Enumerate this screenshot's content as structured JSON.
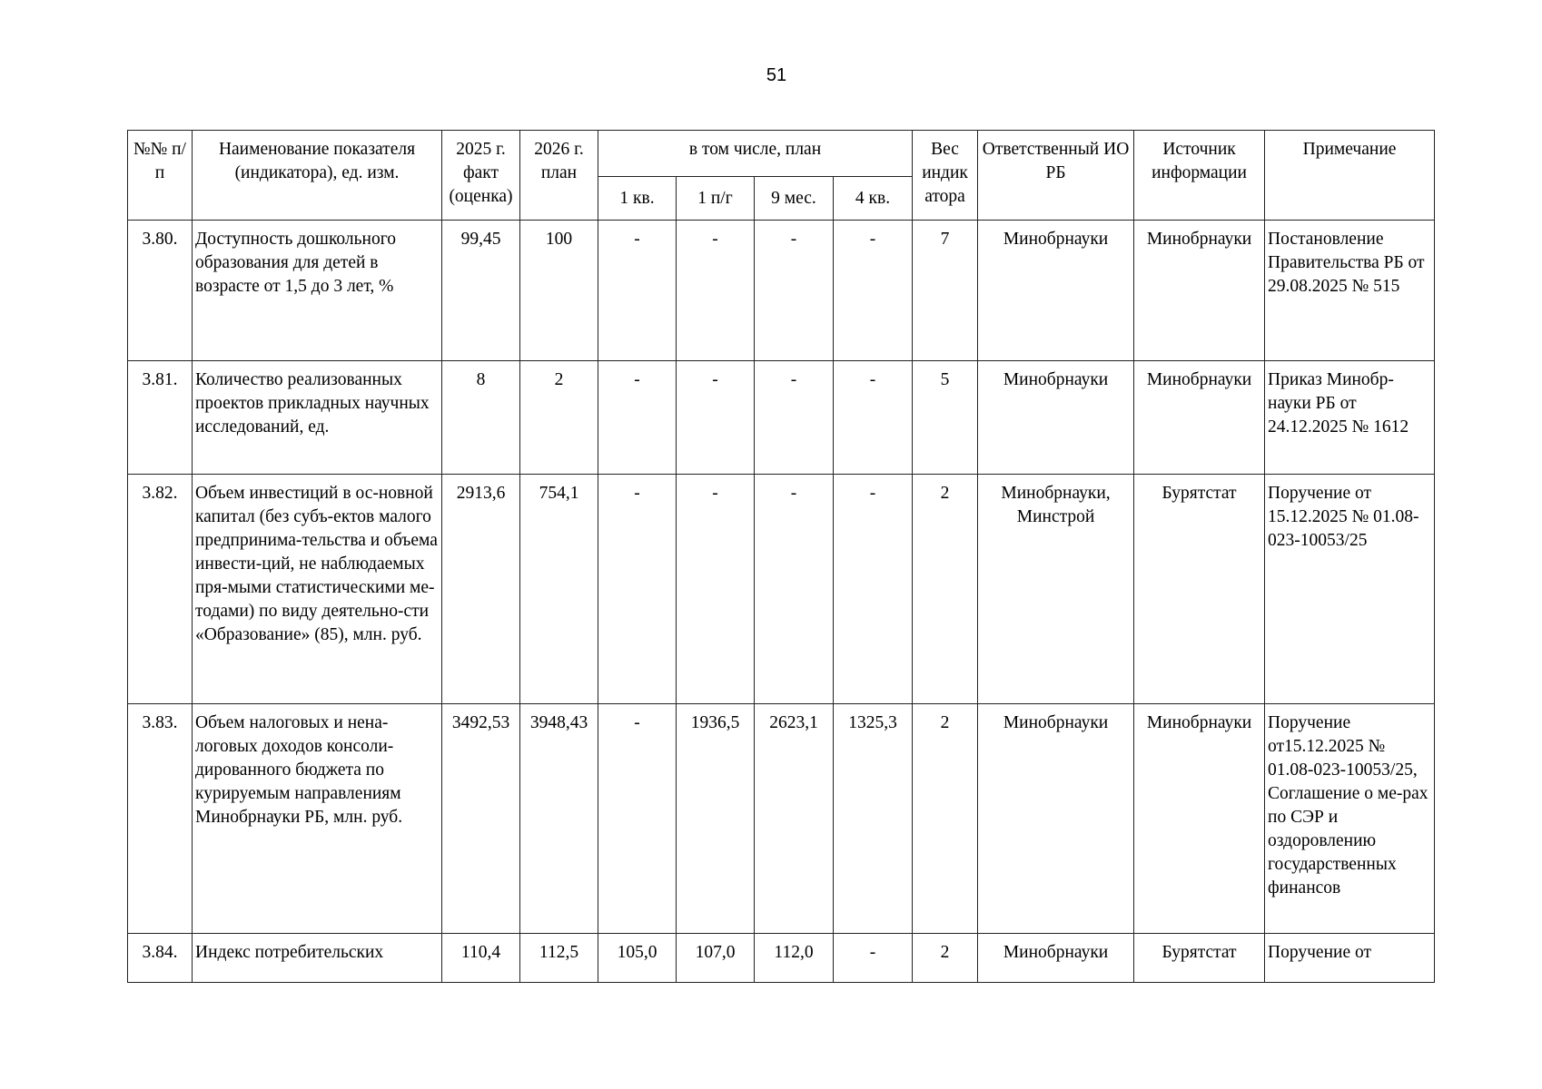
{
  "page_number": "51",
  "table": {
    "headers": {
      "num": "№№ п/п",
      "name": "Наименование показателя (индикатора), ед. изм.",
      "fact2025": "2025 г. факт (оценка)",
      "plan2026": "2026 г. план",
      "incl_plan": "в том числе, план",
      "q1": "1 кв.",
      "h1": "1 п/г",
      "m9": "9 мес.",
      "q4": "4 кв.",
      "weight": "Вес индик атора",
      "responsible": "Ответственный ИО РБ",
      "source": "Источник информации",
      "note": "Примечание"
    },
    "rows": [
      {
        "num": "3.80.",
        "name": "Доступность дошкольного образования для детей в возрасте от 1,5 до 3 лет, %",
        "fact": "99,45",
        "plan": "100",
        "q1": "-",
        "h1": "-",
        "m9": "-",
        "q4": "-",
        "weight": "7",
        "responsible": "Минобрнауки",
        "source": "Минобрнауки",
        "note": "Постановление Правительства РБ от 29.08.2025 № 515"
      },
      {
        "num": "3.81.",
        "name": "Количество реализованных проектов прикладных научных исследований, ед.",
        "fact": "8",
        "plan": "2",
        "q1": "-",
        "h1": "-",
        "m9": "-",
        "q4": "-",
        "weight": "5",
        "responsible": "Минобрнауки",
        "source": "Минобрнауки",
        "note": "Приказ Минобр-науки РБ от 24.12.2025 № 1612"
      },
      {
        "num": "3.82.",
        "name": "Объем инвестиций в ос-новной капитал (без субъ-ектов малого предпринима-тельства и объема инвести-ций, не наблюдаемых пря-мыми статистическими ме-тодами) по виду деятельно-сти «Образование» (85), млн. руб.",
        "fact": "2913,6",
        "plan": "754,1",
        "q1": "-",
        "h1": "-",
        "m9": "-",
        "q4": "-",
        "weight": "2",
        "responsible": "Минобрнауки, Минстрой",
        "source": "Бурятстат",
        "note": "Поручение от 15.12.2025 № 01.08-023-10053/25"
      },
      {
        "num": "3.83.",
        "name": "Объем налоговых и нена-логовых доходов консоли-дированного бюджета по курируемым направлениям Минобрнауки РБ, млн. руб.",
        "fact": "3492,53",
        "plan": "3948,43",
        "q1": "-",
        "h1": "1936,5",
        "m9": "2623,1",
        "q4": "1325,3",
        "weight": "2",
        "responsible": "Минобрнауки",
        "source": "Минобрнауки",
        "note": "Поручение от15.12.2025 № 01.08-023-10053/25, Соглашение о ме-рах по СЭР и оздоровлению государственных финансов"
      },
      {
        "num": "3.84.",
        "name": "Индекс потребительских",
        "fact": "110,4",
        "plan": "112,5",
        "q1": "105,0",
        "h1": "107,0",
        "m9": "112,0",
        "q4": "-",
        "weight": "2",
        "responsible": "Минобрнауки",
        "source": "Бурятстат",
        "note": "Поручение от"
      }
    ]
  }
}
